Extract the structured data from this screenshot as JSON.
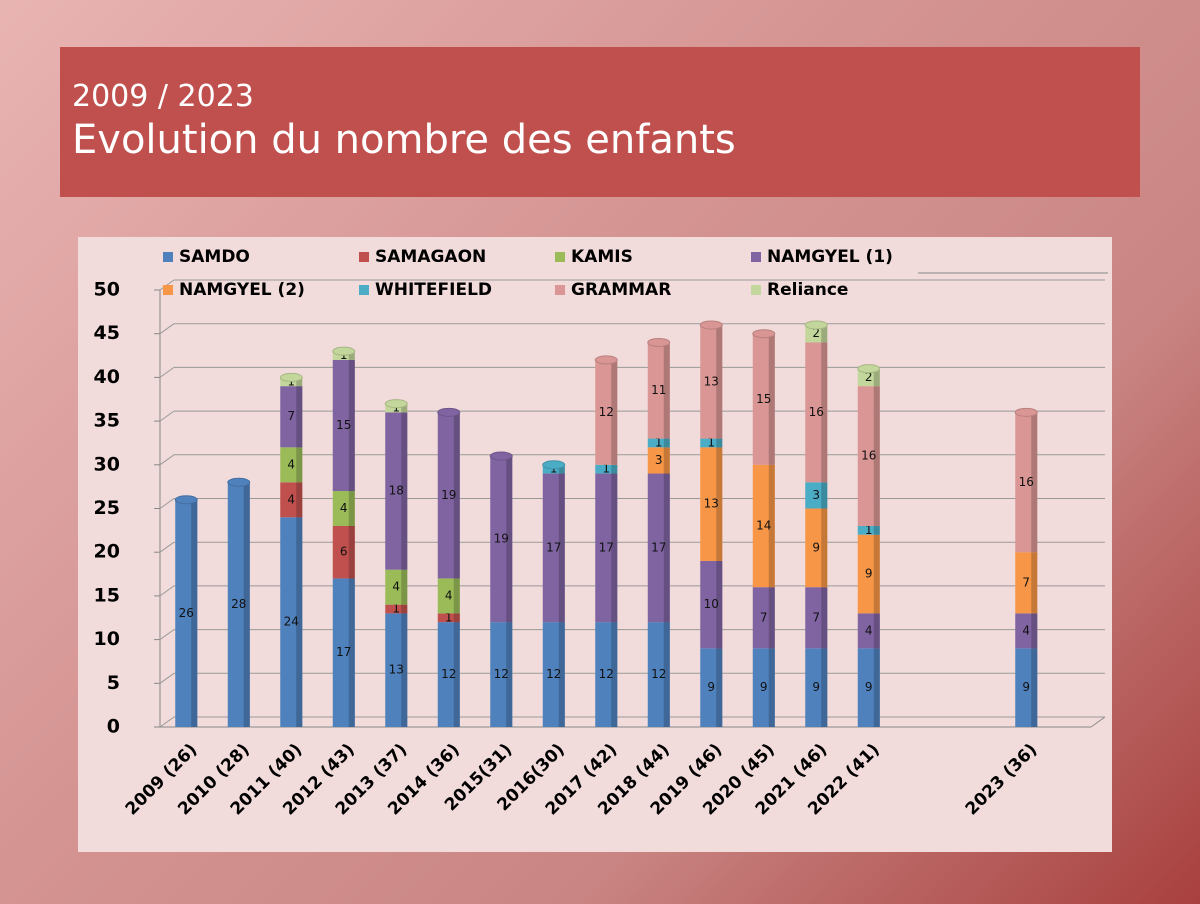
{
  "chart_data": {
    "type": "stacked_bar",
    "subtitle": "2009 / 2023",
    "title": "Evolution du nombre des enfants",
    "categories": [
      "2009 (26)",
      "2010 (28)",
      "2011 (40)",
      "2012 (43)",
      "2013 (37)",
      "2014 (36)",
      "2015(31)",
      "2016(30)",
      "2017 (42)",
      "2018 (44)",
      "2019 (46)",
      "2020 (45)",
      "2021 (46)",
      "2022 (41)",
      null,
      null,
      "2023 (36)",
      null
    ],
    "series": [
      {
        "name": "SAMDO",
        "color": "#4f81bd",
        "values": [
          26,
          28,
          24,
          17,
          13,
          12,
          12,
          12,
          12,
          12,
          9,
          9,
          9,
          9,
          null,
          null,
          9,
          null
        ]
      },
      {
        "name": "SAMAGAON",
        "color": "#c0504d",
        "values": [
          null,
          null,
          4,
          6,
          1,
          1,
          null,
          null,
          null,
          null,
          null,
          null,
          null,
          null,
          null,
          null,
          null,
          null
        ]
      },
      {
        "name": "KAMIS",
        "color": "#9bbb59",
        "values": [
          null,
          null,
          4,
          4,
          4,
          4,
          null,
          null,
          null,
          null,
          null,
          null,
          null,
          null,
          null,
          null,
          null,
          null
        ]
      },
      {
        "name": "NAMGYEL (1)",
        "color": "#8064a2",
        "values": [
          null,
          null,
          7,
          15,
          18,
          19,
          19,
          17,
          17,
          17,
          10,
          7,
          7,
          4,
          null,
          null,
          4,
          null
        ]
      },
      {
        "name": "NAMGYEL (2)",
        "color": "#f79646",
        "values": [
          null,
          null,
          null,
          null,
          null,
          null,
          null,
          null,
          null,
          3,
          13,
          14,
          9,
          9,
          null,
          null,
          7,
          null
        ]
      },
      {
        "name": "WHITEFIELD",
        "color": "#4bacc6",
        "values": [
          null,
          null,
          null,
          null,
          null,
          null,
          null,
          1,
          1,
          1,
          1,
          null,
          3,
          1,
          null,
          null,
          null,
          null
        ]
      },
      {
        "name": "GRAMMAR",
        "color": "#d99694",
        "values": [
          null,
          null,
          null,
          null,
          null,
          null,
          null,
          null,
          12,
          11,
          13,
          15,
          16,
          16,
          null,
          null,
          16,
          null
        ]
      },
      {
        "name": "Reliance",
        "color": "#c3d69b",
        "values": [
          null,
          null,
          1,
          1,
          1,
          null,
          null,
          null,
          null,
          null,
          null,
          null,
          2,
          2,
          null,
          null,
          null,
          null
        ]
      }
    ],
    "ylim": [
      0,
      50
    ],
    "yticks": [
      0,
      5,
      10,
      15,
      20,
      25,
      30,
      35,
      40,
      45,
      50
    ],
    "grid": true
  }
}
